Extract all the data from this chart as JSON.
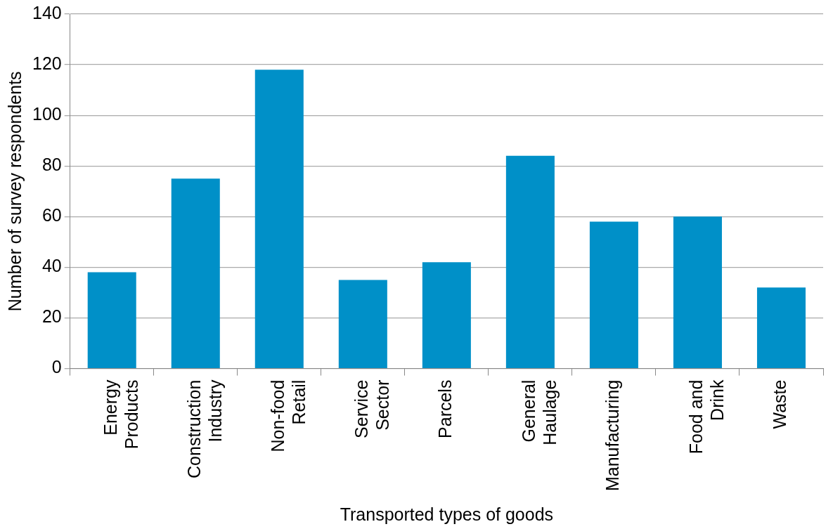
{
  "chart_data": {
    "type": "bar",
    "xlabel": "Transported types of goods",
    "ylabel": "Number of survey respondents",
    "categories": [
      "Energy Products",
      "Construction Industry",
      "Non-food Retail",
      "Service Sector",
      "Parcels",
      "General Haulage",
      "Manufacturing",
      "Food and Drink",
      "Waste"
    ],
    "values": [
      38,
      75,
      118,
      35,
      42,
      84,
      58,
      60,
      32
    ],
    "color": "#0090c8",
    "ylim": [
      0,
      140
    ],
    "yticks": [
      0,
      20,
      40,
      60,
      80,
      100,
      120,
      140
    ],
    "grid": "y"
  }
}
